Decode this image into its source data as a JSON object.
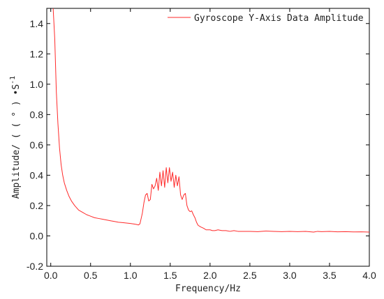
{
  "chart_data": {
    "type": "line",
    "title": "",
    "xlabel": "Frequency/Hz",
    "ylabel": {
      "main": "Amplitude/ ( ( ° ) •S",
      "superscript": "-1"
    },
    "xlim": [
      -0.05,
      4.0
    ],
    "ylim": [
      -0.2,
      1.5
    ],
    "xticks": [
      0.0,
      0.5,
      1.0,
      1.5,
      2.0,
      2.5,
      3.0,
      3.5,
      4.0
    ],
    "xtick_labels": [
      "0.0",
      "0.5",
      "1.0",
      "1.5",
      "2.0",
      "2.5",
      "3.0",
      "3.5",
      "4.0"
    ],
    "yticks": [
      -0.2,
      0.0,
      0.2,
      0.4,
      0.6,
      0.8,
      1.0,
      1.2,
      1.4
    ],
    "ytick_labels": [
      "-0.2",
      "0.0",
      "0.2",
      "0.4",
      "0.6",
      "0.8",
      "1.0",
      "1.2",
      "1.4"
    ],
    "grid": false,
    "legend_position": "top-right",
    "series": [
      {
        "name": "Gyroscope Y-Axis Data Amplitude",
        "color": "#ff2a2a",
        "x": [
          0.03,
          0.05,
          0.07,
          0.09,
          0.11,
          0.13,
          0.15,
          0.17,
          0.2,
          0.23,
          0.26,
          0.3,
          0.35,
          0.4,
          0.45,
          0.5,
          0.55,
          0.6,
          0.65,
          0.7,
          0.75,
          0.8,
          0.85,
          0.9,
          0.95,
          1.0,
          1.05,
          1.08,
          1.1,
          1.12,
          1.15,
          1.17,
          1.19,
          1.21,
          1.23,
          1.25,
          1.27,
          1.29,
          1.31,
          1.33,
          1.35,
          1.37,
          1.39,
          1.41,
          1.43,
          1.45,
          1.47,
          1.49,
          1.51,
          1.53,
          1.55,
          1.57,
          1.59,
          1.61,
          1.63,
          1.65,
          1.67,
          1.69,
          1.71,
          1.73,
          1.75,
          1.77,
          1.79,
          1.81,
          1.83,
          1.85,
          1.88,
          1.92,
          1.95,
          1.98,
          2.0,
          2.03,
          2.06,
          2.1,
          2.15,
          2.2,
          2.25,
          2.3,
          2.35,
          2.4,
          2.5,
          2.6,
          2.7,
          2.8,
          2.9,
          3.0,
          3.1,
          3.2,
          3.3,
          3.35,
          3.4,
          3.5,
          3.6,
          3.7,
          3.8,
          3.9,
          4.0
        ],
        "y": [
          1.5,
          1.3,
          0.95,
          0.74,
          0.58,
          0.47,
          0.4,
          0.35,
          0.3,
          0.26,
          0.23,
          0.2,
          0.17,
          0.155,
          0.14,
          0.13,
          0.12,
          0.115,
          0.11,
          0.105,
          0.1,
          0.095,
          0.09,
          0.088,
          0.085,
          0.082,
          0.078,
          0.075,
          0.072,
          0.08,
          0.15,
          0.22,
          0.27,
          0.28,
          0.23,
          0.24,
          0.34,
          0.31,
          0.33,
          0.38,
          0.3,
          0.42,
          0.33,
          0.43,
          0.32,
          0.45,
          0.35,
          0.45,
          0.36,
          0.42,
          0.32,
          0.4,
          0.33,
          0.39,
          0.27,
          0.24,
          0.27,
          0.28,
          0.2,
          0.17,
          0.16,
          0.165,
          0.14,
          0.12,
          0.09,
          0.07,
          0.06,
          0.05,
          0.04,
          0.04,
          0.04,
          0.035,
          0.035,
          0.04,
          0.035,
          0.035,
          0.03,
          0.035,
          0.03,
          0.03,
          0.03,
          0.028,
          0.032,
          0.03,
          0.028,
          0.03,
          0.028,
          0.03,
          0.025,
          0.03,
          0.028,
          0.03,
          0.027,
          0.028,
          0.026,
          0.027,
          0.025
        ]
      }
    ]
  }
}
